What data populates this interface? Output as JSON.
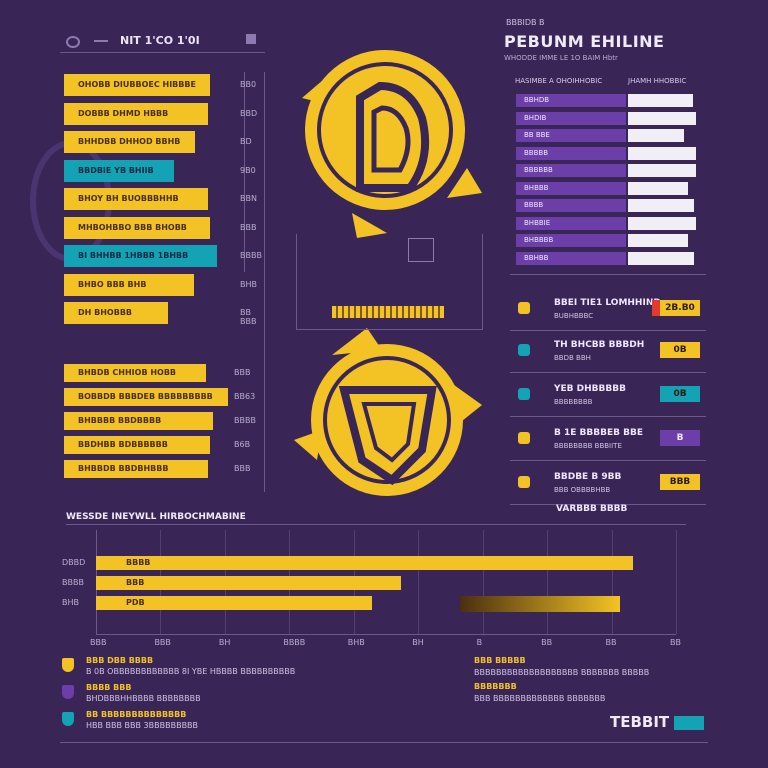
{
  "colors": {
    "background": "#3a2656",
    "yellow": "#f3c325",
    "teal": "#14a3b4",
    "purple": "#6c3fa8",
    "red": "#e23b2e",
    "white": "#f1eef6"
  },
  "header_left": {
    "title": "NIT 1'CO 1'0I"
  },
  "header_right": {
    "small": "BBBIDB B",
    "title": "PEBUNM EHILINE",
    "subtitle": "WHODDE IMME LE 1O BAIM Hbtr",
    "col_left": "HASIMBE A OHOIHHOBIC",
    "col_right": "JHAMH HHOBBIC"
  },
  "chart_data": [
    {
      "type": "bar",
      "orientation": "horizontal",
      "categories": [
        "OHOBB DIUBBOEC HIBBBE",
        "DOBBB DHMD HBBB",
        "BHHDBB DHHOD BBHB",
        "BBDBIE YB BHIIB",
        "BHOY BH BUOBBBHHB",
        "MHBOHBBO BBB BHOBB",
        "BI BHHBB 1HBBB 1BHBB",
        "BHBO BBB BHB",
        "DH BHOBBB"
      ],
      "series": [
        {
          "values": [
            8.1,
            8.0,
            7.3,
            6.1,
            8.0,
            8.1,
            8.5,
            7.2,
            5.8
          ]
        }
      ],
      "tick_labels": [
        "BB0",
        "BBD",
        "BD",
        "9B0",
        "BBN",
        "BBB",
        "BBBB",
        "BHB",
        "BB BBB"
      ],
      "xlim": [
        0,
        10
      ]
    },
    {
      "type": "bar",
      "orientation": "horizontal",
      "categories": [
        "BHBDB CHHIOB HOBB",
        "BOBBDB BBBDEB BBBBBBBBB",
        "BHBBBB BBDBBBB",
        "BBDHBB BDBBBBBB",
        "BHBBDB BBDBHBBB"
      ],
      "series": [
        {
          "values": [
            7.9,
            9.1,
            8.3,
            8.1,
            8.0
          ]
        }
      ],
      "tick_labels": [
        "BBB",
        "BB63",
        "BBBB",
        "B6B",
        "BBB"
      ],
      "xlim": [
        0,
        10
      ]
    },
    {
      "type": "bar",
      "orientation": "horizontal",
      "title": "WESSDE INEYWLL HIRBOCHMABINE",
      "categories": [
        "DBBD",
        "BBBB",
        "BHB"
      ],
      "series": [
        {
          "values": [
            18.5,
            10.5,
            9.5
          ]
        }
      ],
      "extra_labels": [
        "BBBB",
        "BBB",
        "PDB"
      ],
      "x_ticks": [
        "BBB",
        "BBB",
        "BH",
        "BBBB",
        "BHB",
        "BH",
        "B",
        "BB",
        "BB",
        "BB"
      ],
      "xlim": [
        0,
        20
      ]
    },
    {
      "type": "bar",
      "orientation": "horizontal",
      "categories": [
        "BBHDB",
        "BHDIB",
        "BB BBE",
        "BBBBB",
        "BBBBBB",
        "BHBBB",
        "BBBB",
        "BHBBIE",
        "BHBBBB",
        "BBHBB"
      ],
      "series": [
        {
          "values": [
            38,
            40,
            33,
            40,
            40,
            35,
            39,
            40,
            35,
            39
          ]
        }
      ],
      "xlim": [
        0,
        40
      ]
    }
  ],
  "leaderboard": [
    {
      "title": "BBEI TIE1 LOMHHIND",
      "sub": "BUBHBBBC",
      "value": "2B.B0",
      "color": "#f3c325",
      "accent": "#e23b2e"
    },
    {
      "title": "TH BHCBB BBBDH",
      "sub": "BBDB BBH",
      "value": "0B",
      "color": "#f3c325",
      "accent": ""
    },
    {
      "title": "YEB DHBBBBB",
      "sub": "BBBBBBBB",
      "value": "0B",
      "color": "#14a3b4",
      "accent": ""
    },
    {
      "title": "B 1E BBBBEB BBE",
      "sub": "BBBBBBBB BBBIITE",
      "value": "B",
      "color": "#6c3fa8",
      "accent": ""
    },
    {
      "title": "BBDBE B 9BB",
      "sub": "BBB OBBBBHBB",
      "value": "BBB",
      "color": "#f3c325",
      "accent": ""
    }
  ],
  "leaderboard_footer": "VARBBB BBBB",
  "footer_left": [
    {
      "title": "BBB DBB BBBB",
      "text": "B 0B OBBBBBBBBBBBB 8I YBE HBBBB BBBBBBBBBB"
    },
    {
      "title": "BBBB BBB",
      "text": "BHDBBBHHBBBB BBBBBBBB"
    },
    {
      "title": "BB BBBBBBBBBBBBBB",
      "text": "HBB BBB BBB 3BBBBBBBBB"
    }
  ],
  "footer_right": [
    {
      "title": "BBB BBBBB",
      "text": "BBBBBBBBBBBBBBBBBBB BBBBBBB BBBBB"
    },
    {
      "title": "BBBBBBB",
      "text": "BBB BBBBBBBBBBBBB BBBBBBB"
    }
  ],
  "brand": "TEBBIT"
}
